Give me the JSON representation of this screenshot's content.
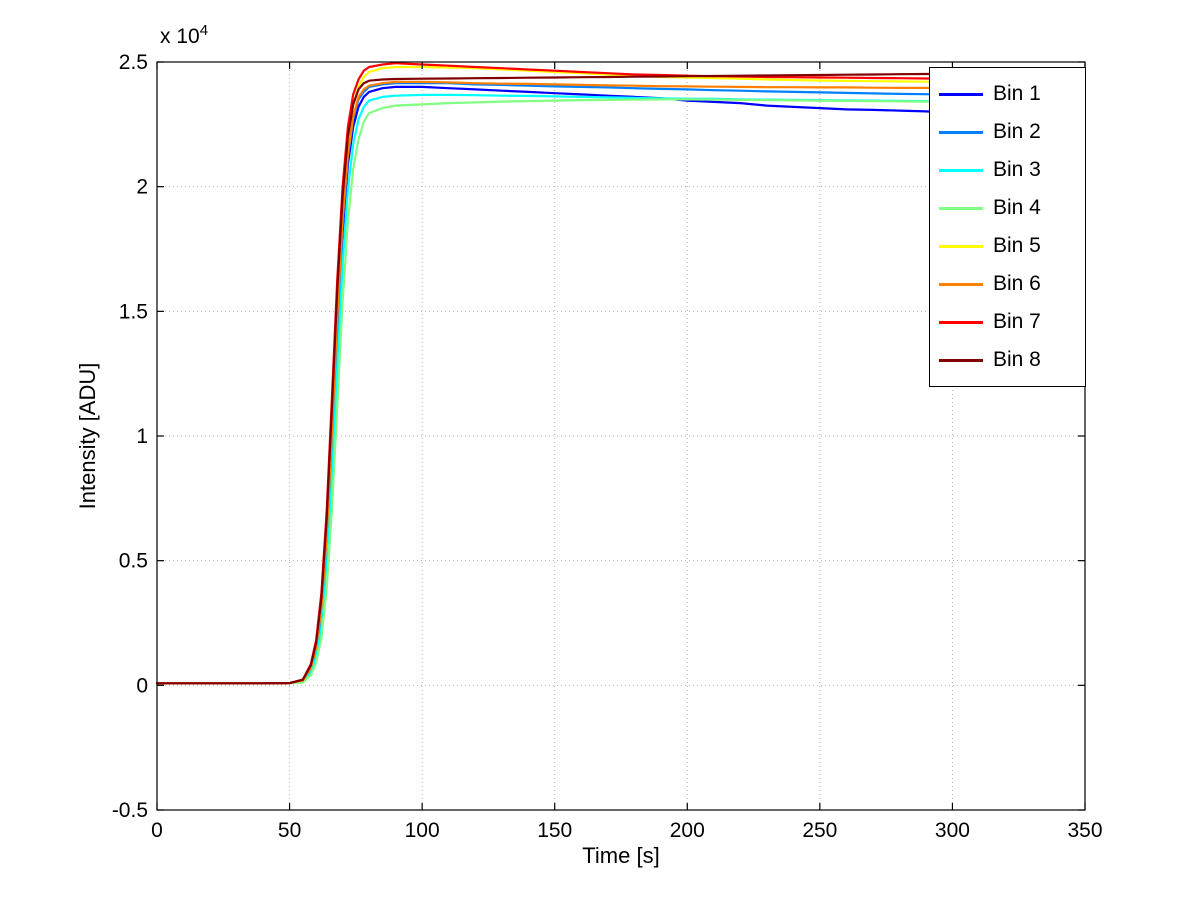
{
  "figure": {
    "xlabel": "Time [s]",
    "ylabel": "Intensity [ADU]",
    "y_multiplier_base": "x 10",
    "y_multiplier_exp": "4",
    "background": "#ffffff",
    "axis_color": "#000000",
    "grid_color": "#b3b3b3"
  },
  "chart_data": {
    "type": "line",
    "title": "",
    "xlabel": "Time [s]",
    "ylabel": "Intensity [ADU]",
    "xlim": [
      0,
      350
    ],
    "ylim": [
      -5000,
      25000
    ],
    "xticks": [
      0,
      50,
      100,
      150,
      200,
      250,
      300,
      350
    ],
    "xtick_labels": [
      "0",
      "50",
      "100",
      "150",
      "200",
      "250",
      "300",
      "350"
    ],
    "yticks": [
      -5000,
      0,
      5000,
      10000,
      15000,
      20000,
      25000
    ],
    "ytick_labels": [
      "-0.5",
      "0",
      "0.5",
      "1",
      "1.5",
      "2",
      "2.5"
    ],
    "y_multiplier_label": "x 10^4",
    "grid": true,
    "grid_style": "dotted",
    "legend_position": "upper right",
    "series": [
      {
        "name": "Bin 1",
        "color": "#0000FF",
        "x": [
          0,
          20,
          40,
          50,
          55,
          58,
          60,
          62,
          64,
          66,
          68,
          70,
          72,
          74,
          76,
          78,
          80,
          85,
          90,
          100,
          110,
          120,
          130,
          140,
          150,
          160,
          170,
          180,
          190,
          200,
          210,
          220,
          230,
          240,
          250,
          260,
          270,
          280,
          290,
          293
        ],
        "y": [
          80,
          80,
          80,
          90,
          150,
          600,
          1300,
          2700,
          5300,
          9400,
          14000,
          18100,
          20900,
          22400,
          23200,
          23600,
          23800,
          23950,
          24000,
          24000,
          23950,
          23900,
          23850,
          23800,
          23750,
          23700,
          23650,
          23600,
          23550,
          23450,
          23400,
          23350,
          23250,
          23200,
          23150,
          23100,
          23080,
          23050,
          23020,
          23000
        ]
      },
      {
        "name": "Bin 2",
        "color": "#0080FF",
        "x": [
          0,
          20,
          40,
          50,
          55,
          58,
          60,
          62,
          64,
          66,
          68,
          70,
          72,
          74,
          76,
          78,
          80,
          85,
          90,
          100,
          110,
          120,
          130,
          140,
          150,
          160,
          170,
          180,
          190,
          200,
          210,
          220,
          230,
          240,
          250,
          260,
          270,
          280,
          290,
          293
        ],
        "y": [
          80,
          80,
          80,
          90,
          160,
          620,
          1350,
          2800,
          5500,
          9700,
          14400,
          18500,
          21200,
          22700,
          23500,
          23800,
          24000,
          24100,
          24150,
          24150,
          24150,
          24100,
          24080,
          24050,
          24020,
          24000,
          23980,
          23950,
          23920,
          23900,
          23870,
          23850,
          23820,
          23800,
          23780,
          23760,
          23740,
          23720,
          23710,
          23700
        ]
      },
      {
        "name": "Bin 3",
        "color": "#00FFFF",
        "x": [
          0,
          20,
          40,
          50,
          55,
          58,
          60,
          62,
          64,
          66,
          68,
          70,
          72,
          74,
          76,
          78,
          80,
          85,
          90,
          100,
          110,
          120,
          130,
          140,
          150,
          160,
          170,
          180,
          190,
          200,
          210,
          220,
          230,
          240,
          250,
          260,
          270,
          280,
          290,
          293
        ],
        "y": [
          80,
          80,
          80,
          90,
          130,
          500,
          1100,
          2300,
          4600,
          8300,
          12700,
          16900,
          19900,
          21700,
          22700,
          23200,
          23450,
          23600,
          23650,
          23680,
          23680,
          23670,
          23650,
          23640,
          23620,
          23600,
          23580,
          23560,
          23540,
          23530,
          23520,
          23500,
          23490,
          23480,
          23470,
          23460,
          23450,
          23440,
          23430,
          23420
        ]
      },
      {
        "name": "Bin 4",
        "color": "#80FF80",
        "x": [
          0,
          20,
          40,
          50,
          55,
          58,
          60,
          62,
          64,
          66,
          68,
          70,
          72,
          74,
          76,
          78,
          80,
          85,
          90,
          100,
          110,
          120,
          130,
          140,
          150,
          160,
          170,
          180,
          190,
          200,
          210,
          220,
          230,
          240,
          250,
          260,
          270,
          280,
          290,
          293
        ],
        "y": [
          80,
          80,
          80,
          90,
          110,
          400,
          900,
          1900,
          3900,
          7100,
          11200,
          15400,
          18600,
          20700,
          21900,
          22600,
          22950,
          23150,
          23250,
          23300,
          23350,
          23380,
          23410,
          23430,
          23450,
          23470,
          23480,
          23490,
          23500,
          23500,
          23490,
          23480,
          23470,
          23460,
          23450,
          23440,
          23430,
          23420,
          23410,
          23410
        ]
      },
      {
        "name": "Bin 5",
        "color": "#FFFF00",
        "x": [
          0,
          20,
          40,
          50,
          55,
          58,
          60,
          62,
          64,
          66,
          68,
          70,
          72,
          74,
          76,
          78,
          80,
          85,
          90,
          100,
          110,
          120,
          130,
          140,
          150,
          160,
          170,
          180,
          190,
          200,
          210,
          220,
          230,
          240,
          250,
          260,
          270,
          280,
          290,
          293
        ],
        "y": [
          80,
          80,
          80,
          90,
          200,
          750,
          1600,
          3300,
          6300,
          10700,
          15300,
          19200,
          21800,
          23300,
          24000,
          24400,
          24600,
          24750,
          24800,
          24800,
          24780,
          24750,
          24700,
          24650,
          24600,
          24550,
          24500,
          24450,
          24400,
          24380,
          24350,
          24330,
          24300,
          24280,
          24260,
          24240,
          24230,
          24220,
          24210,
          24200
        ]
      },
      {
        "name": "Bin 6",
        "color": "#FF8000",
        "x": [
          0,
          20,
          40,
          50,
          55,
          58,
          60,
          62,
          64,
          66,
          68,
          70,
          72,
          74,
          76,
          78,
          80,
          85,
          90,
          100,
          110,
          120,
          130,
          140,
          150,
          160,
          170,
          180,
          190,
          200,
          210,
          220,
          230,
          240,
          250,
          260,
          270,
          280,
          290,
          293
        ],
        "y": [
          80,
          80,
          80,
          90,
          190,
          700,
          1500,
          3100,
          6000,
          10200,
          14800,
          18700,
          21300,
          22800,
          23600,
          23900,
          24050,
          24150,
          24200,
          24200,
          24180,
          24150,
          24130,
          24120,
          24100,
          24080,
          24060,
          24050,
          24030,
          24020,
          24010,
          24000,
          23990,
          23990,
          23980,
          23980,
          23970,
          23960,
          23960,
          23950
        ]
      },
      {
        "name": "Bin 7",
        "color": "#FF0000",
        "x": [
          0,
          20,
          40,
          50,
          55,
          58,
          60,
          62,
          64,
          66,
          68,
          70,
          72,
          74,
          76,
          78,
          80,
          85,
          90,
          100,
          110,
          120,
          130,
          140,
          150,
          160,
          170,
          180,
          190,
          200,
          210,
          220,
          230,
          240,
          250,
          260,
          270,
          280,
          290,
          293
        ],
        "y": [
          80,
          80,
          80,
          90,
          230,
          850,
          1800,
          3700,
          7000,
          11600,
          16300,
          20000,
          22400,
          23700,
          24300,
          24650,
          24800,
          24900,
          24950,
          24900,
          24850,
          24800,
          24750,
          24700,
          24650,
          24600,
          24550,
          24500,
          24480,
          24450,
          24430,
          24420,
          24400,
          24390,
          24380,
          24370,
          24360,
          24350,
          24340,
          24330
        ]
      },
      {
        "name": "Bin 8",
        "color": "#800000",
        "x": [
          0,
          20,
          40,
          50,
          55,
          58,
          60,
          62,
          64,
          66,
          68,
          70,
          72,
          74,
          76,
          78,
          80,
          85,
          90,
          100,
          110,
          120,
          130,
          140,
          150,
          160,
          170,
          180,
          190,
          200,
          210,
          220,
          230,
          240,
          250,
          260,
          270,
          280,
          290,
          300,
          310,
          320,
          330,
          340,
          345
        ],
        "y": [
          80,
          80,
          80,
          90,
          220,
          800,
          1700,
          3500,
          6700,
          11200,
          15900,
          19600,
          22000,
          23300,
          23900,
          24150,
          24250,
          24300,
          24320,
          24330,
          24340,
          24350,
          24360,
          24370,
          24380,
          24390,
          24400,
          24410,
          24420,
          24430,
          24440,
          24450,
          24460,
          24470,
          24480,
          24490,
          24500,
          24510,
          24520,
          24530,
          24540,
          24550,
          24560,
          24570,
          24575
        ]
      }
    ]
  }
}
